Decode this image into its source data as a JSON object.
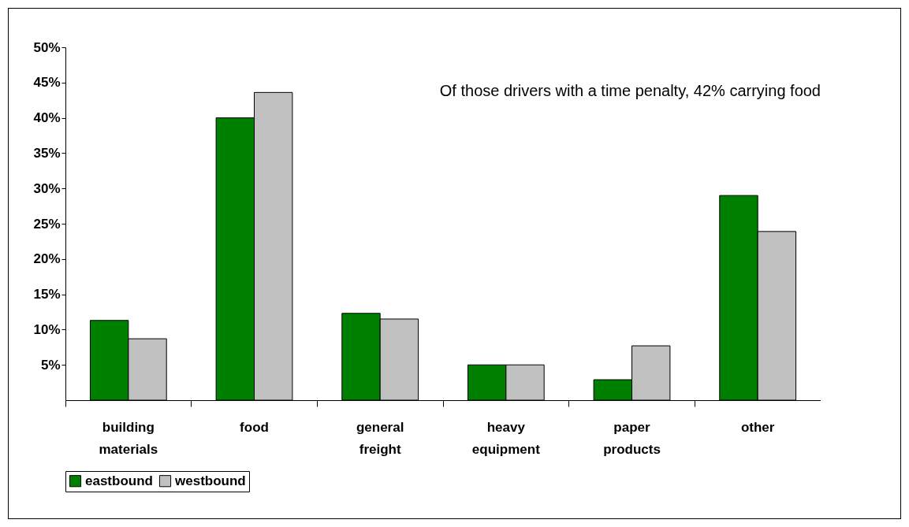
{
  "chart_data": {
    "type": "bar",
    "categories": [
      "building materials",
      "food",
      "general freight",
      "heavy equipment",
      "paper products",
      "other"
    ],
    "series": [
      {
        "name": "eastbound",
        "color": "#008000",
        "values": [
          11.3,
          40.0,
          12.3,
          5.0,
          2.9,
          29.0
        ]
      },
      {
        "name": "westbound",
        "color": "#c0c0c0",
        "values": [
          8.7,
          43.6,
          11.5,
          5.0,
          7.7,
          23.9
        ]
      }
    ],
    "ylim": [
      0,
      50
    ],
    "yticks": [
      {
        "value": 5,
        "label": "5%"
      },
      {
        "value": 10,
        "label": "10%"
      },
      {
        "value": 15,
        "label": "15%"
      },
      {
        "value": 20,
        "label": "20%"
      },
      {
        "value": 25,
        "label": "25%"
      },
      {
        "value": 30,
        "label": "30%"
      },
      {
        "value": 35,
        "label": "35%"
      },
      {
        "value": 40,
        "label": "40%"
      },
      {
        "value": 45,
        "label": "45%"
      },
      {
        "value": 50,
        "label": "50%"
      }
    ],
    "annotations": [
      "Of those drivers with a time penalty, 42% carrying food"
    ],
    "grid": false,
    "legend": "bottom"
  }
}
